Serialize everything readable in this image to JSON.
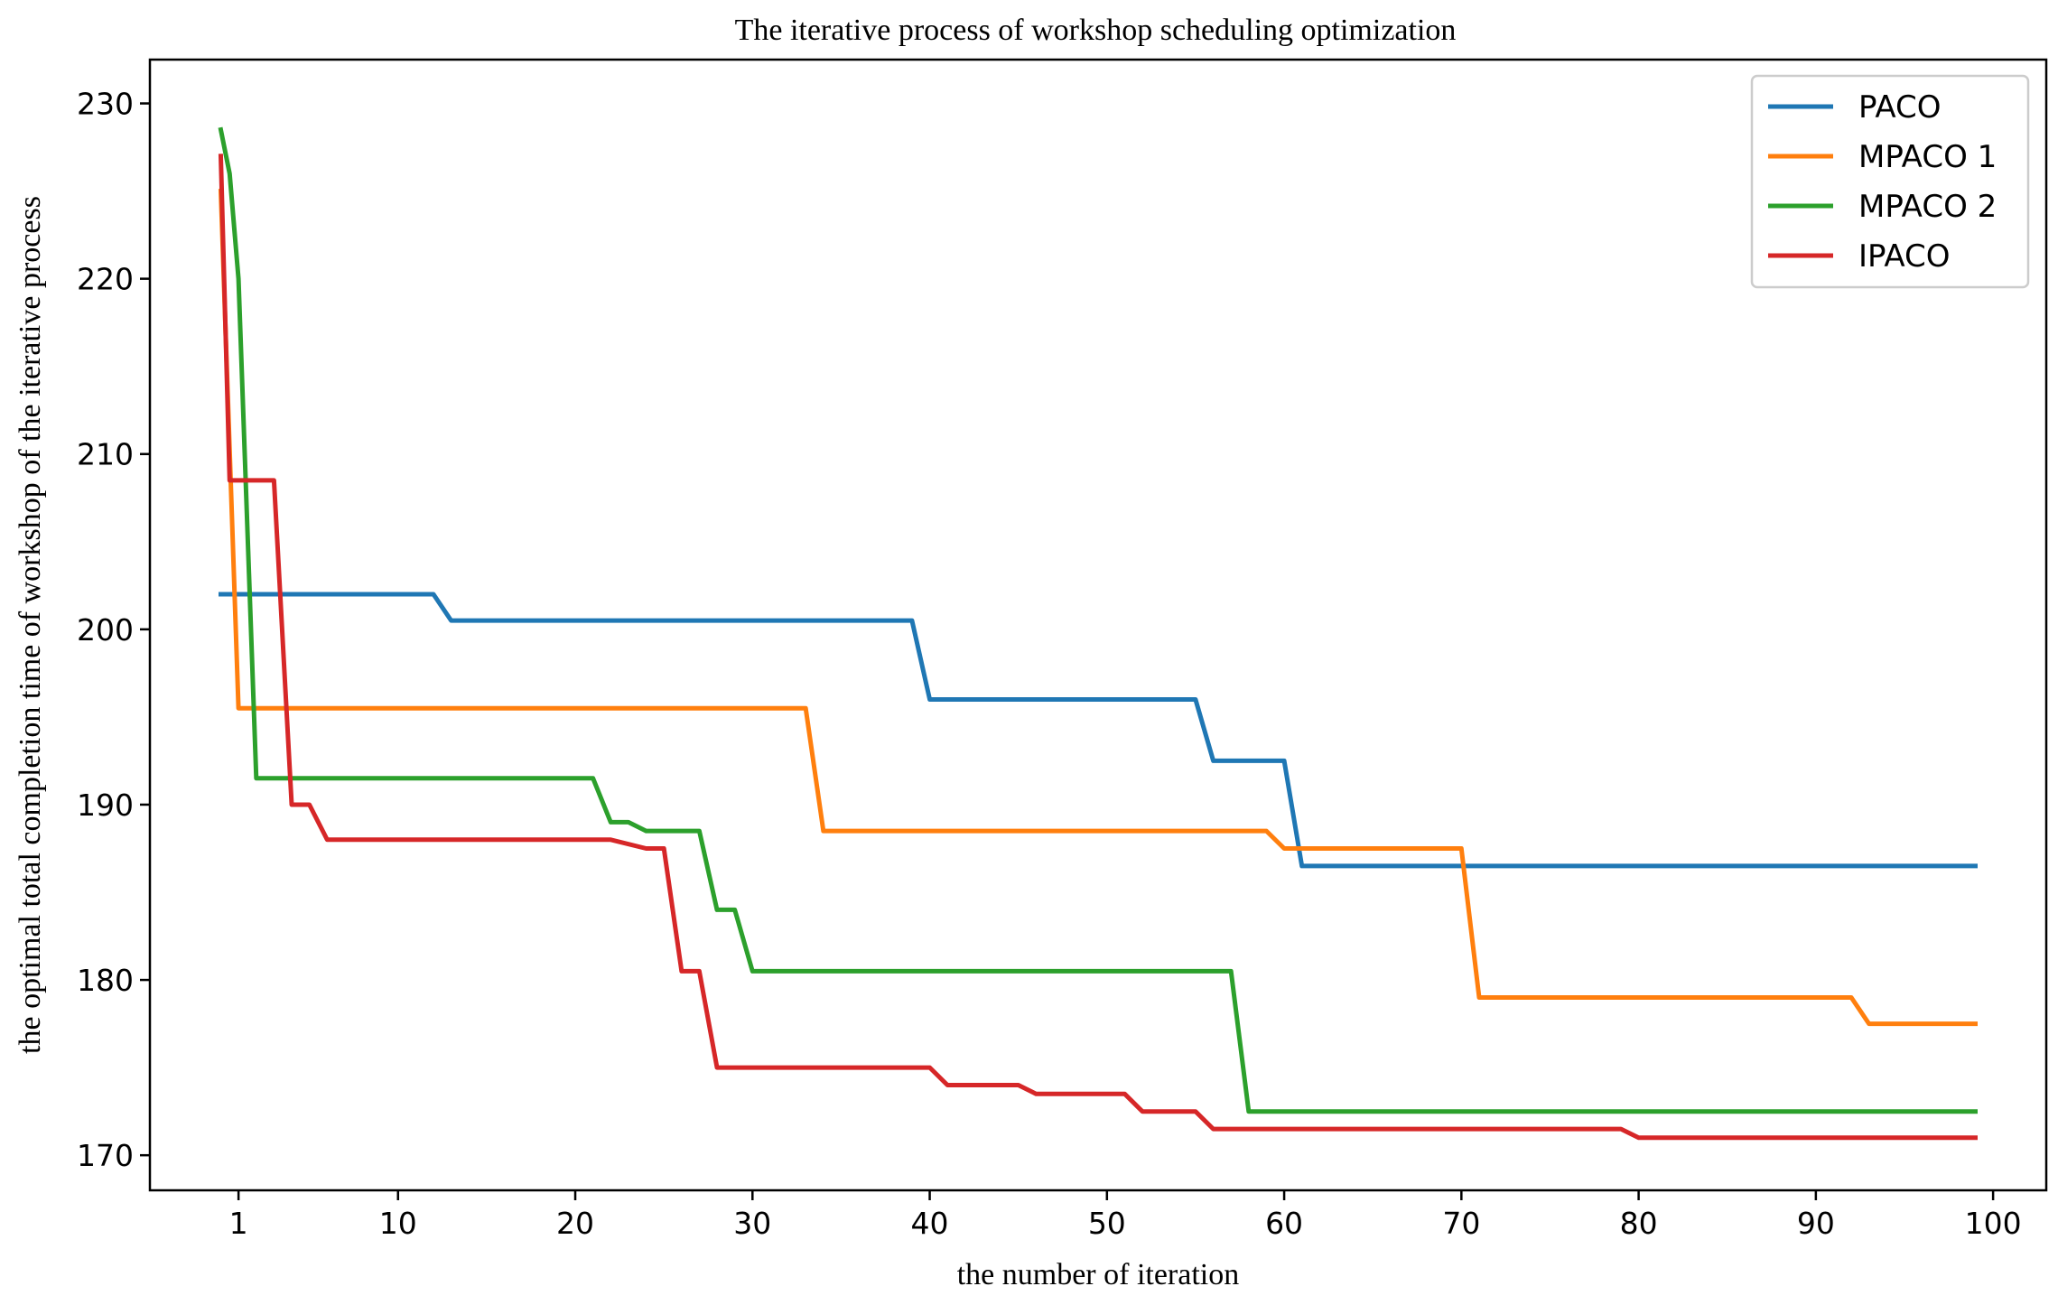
{
  "chart_data": {
    "type": "line",
    "title": "The iterative process of workshop scheduling optimization",
    "xlabel": "the number of iteration",
    "ylabel": "the optimal total completion time of workshop of the iterative process",
    "xlim": [
      -4,
      103
    ],
    "ylim": [
      168,
      232.5
    ],
    "xticks": [
      1,
      10,
      20,
      30,
      40,
      50,
      60,
      70,
      80,
      90,
      100
    ],
    "xtick_labels": [
      "1",
      "10",
      "20",
      "30",
      "40",
      "50",
      "60",
      "70",
      "80",
      "90",
      "100"
    ],
    "yticks": [
      170,
      180,
      190,
      200,
      210,
      220,
      230
    ],
    "ytick_labels": [
      "170",
      "180",
      "190",
      "200",
      "210",
      "220",
      "230"
    ],
    "legend_position": "top-right",
    "series": [
      {
        "name": "PACO",
        "color": "#1f77b4",
        "points": [
          [
            0,
            202
          ],
          [
            12,
            202
          ],
          [
            13,
            200.5
          ],
          [
            39,
            200.5
          ],
          [
            40,
            196
          ],
          [
            55,
            196
          ],
          [
            56,
            192.5
          ],
          [
            60,
            192.5
          ],
          [
            61,
            186.5
          ],
          [
            99,
            186.5
          ]
        ]
      },
      {
        "name": "MPACO 1",
        "color": "#ff7f0e",
        "points": [
          [
            0,
            225
          ],
          [
            1,
            195.5
          ],
          [
            33,
            195.5
          ],
          [
            34,
            188.5
          ],
          [
            59,
            188.5
          ],
          [
            60,
            187.5
          ],
          [
            70,
            187.5
          ],
          [
            71,
            179
          ],
          [
            92,
            179
          ],
          [
            93,
            177.5
          ],
          [
            99,
            177.5
          ]
        ]
      },
      {
        "name": "MPACO 2",
        "color": "#2ca02c",
        "points": [
          [
            0,
            228.5
          ],
          [
            0.5,
            226
          ],
          [
            1,
            220
          ],
          [
            2,
            191.5
          ],
          [
            21,
            191.5
          ],
          [
            22,
            189
          ],
          [
            23,
            189
          ],
          [
            24,
            188.5
          ],
          [
            27,
            188.5
          ],
          [
            28,
            184
          ],
          [
            29,
            184
          ],
          [
            30,
            180.5
          ],
          [
            57,
            180.5
          ],
          [
            58,
            172.5
          ],
          [
            99,
            172.5
          ]
        ]
      },
      {
        "name": "IPACO",
        "color": "#d62728",
        "points": [
          [
            0,
            227
          ],
          [
            0.5,
            208.5
          ],
          [
            3,
            208.5
          ],
          [
            4,
            190
          ],
          [
            5,
            190
          ],
          [
            6,
            188
          ],
          [
            22,
            188
          ],
          [
            24,
            187.5
          ],
          [
            25,
            187.5
          ],
          [
            26,
            180.5
          ],
          [
            27,
            180.5
          ],
          [
            28,
            175
          ],
          [
            40,
            175
          ],
          [
            41,
            174
          ],
          [
            45,
            174
          ],
          [
            46,
            173.5
          ],
          [
            51,
            173.5
          ],
          [
            52,
            172.5
          ],
          [
            55,
            172.5
          ],
          [
            56,
            171.5
          ],
          [
            79,
            171.5
          ],
          [
            80,
            171
          ],
          [
            99,
            171
          ]
        ]
      }
    ]
  }
}
